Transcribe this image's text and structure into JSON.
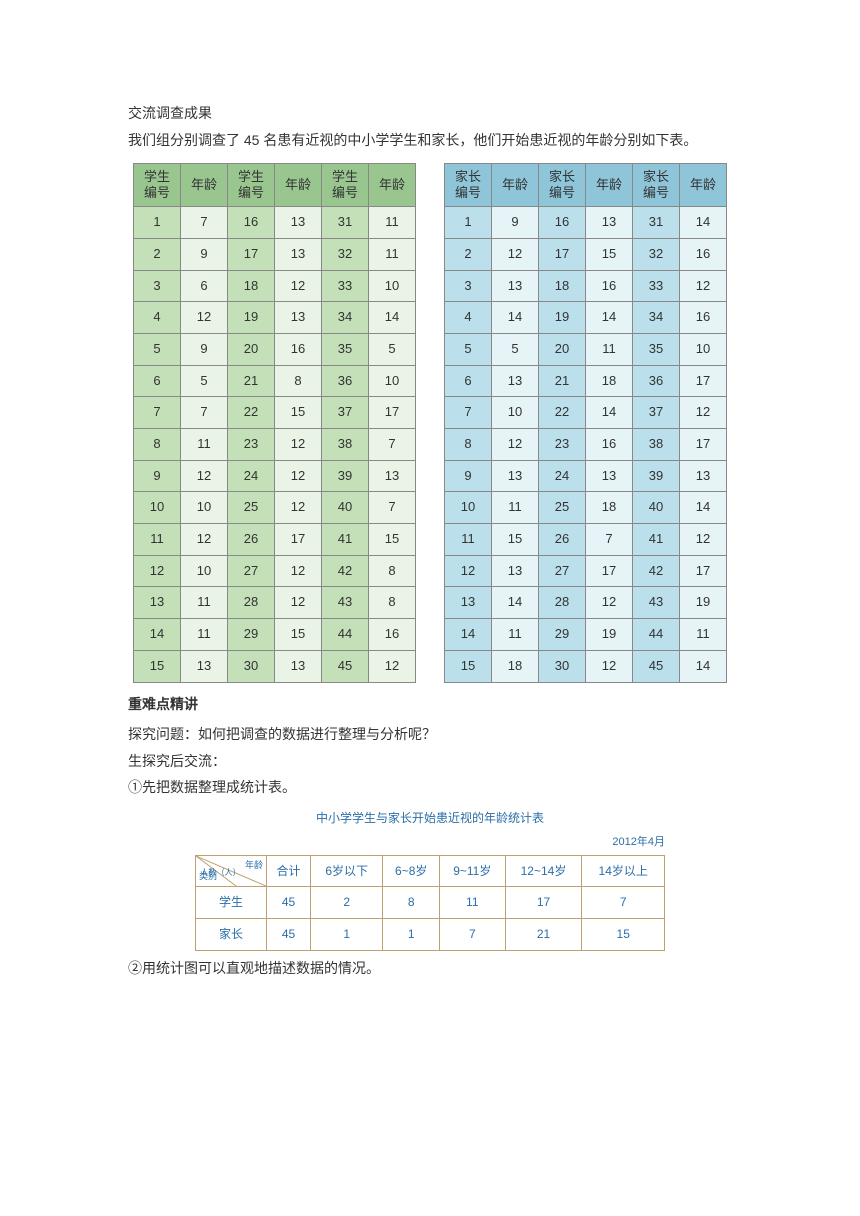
{
  "intro": {
    "p1": "交流调查成果",
    "p2": "我们组分别调查了 45 名患有近视的中小学学生和家长，他们开始患近视的年龄分别如下表。"
  },
  "colors": {
    "green_header": "#99c68f",
    "green_id": "#c3e0b8",
    "green_val": "#eaf4e6",
    "blue_header": "#8fc5d8",
    "blue_id": "#bbe0ec",
    "blue_val": "#e6f3f7",
    "border": "#888888",
    "summary_border": "#bfa070",
    "summary_text": "#2b6ea8"
  },
  "headers": {
    "student_id": "学生编号",
    "parent_id": "家长编号",
    "age": "年龄"
  },
  "students": [
    [
      1,
      7
    ],
    [
      2,
      9
    ],
    [
      3,
      6
    ],
    [
      4,
      12
    ],
    [
      5,
      9
    ],
    [
      6,
      5
    ],
    [
      7,
      7
    ],
    [
      8,
      11
    ],
    [
      9,
      12
    ],
    [
      10,
      10
    ],
    [
      11,
      12
    ],
    [
      12,
      10
    ],
    [
      13,
      11
    ],
    [
      14,
      11
    ],
    [
      15,
      13
    ],
    [
      16,
      13
    ],
    [
      17,
      13
    ],
    [
      18,
      12
    ],
    [
      19,
      13
    ],
    [
      20,
      16
    ],
    [
      21,
      8
    ],
    [
      22,
      15
    ],
    [
      23,
      12
    ],
    [
      24,
      12
    ],
    [
      25,
      12
    ],
    [
      26,
      17
    ],
    [
      27,
      12
    ],
    [
      28,
      12
    ],
    [
      29,
      15
    ],
    [
      30,
      13
    ],
    [
      31,
      11
    ],
    [
      32,
      11
    ],
    [
      33,
      10
    ],
    [
      34,
      14
    ],
    [
      35,
      5
    ],
    [
      36,
      10
    ],
    [
      37,
      17
    ],
    [
      38,
      7
    ],
    [
      39,
      13
    ],
    [
      40,
      7
    ],
    [
      41,
      15
    ],
    [
      42,
      8
    ],
    [
      43,
      8
    ],
    [
      44,
      16
    ],
    [
      45,
      12
    ]
  ],
  "parents": [
    [
      1,
      9
    ],
    [
      2,
      12
    ],
    [
      3,
      13
    ],
    [
      4,
      14
    ],
    [
      5,
      5
    ],
    [
      6,
      13
    ],
    [
      7,
      10
    ],
    [
      8,
      12
    ],
    [
      9,
      13
    ],
    [
      10,
      11
    ],
    [
      11,
      15
    ],
    [
      12,
      13
    ],
    [
      13,
      14
    ],
    [
      14,
      11
    ],
    [
      15,
      18
    ],
    [
      16,
      13
    ],
    [
      17,
      15
    ],
    [
      18,
      16
    ],
    [
      19,
      14
    ],
    [
      20,
      11
    ],
    [
      21,
      18
    ],
    [
      22,
      14
    ],
    [
      23,
      16
    ],
    [
      24,
      13
    ],
    [
      25,
      18
    ],
    [
      26,
      7
    ],
    [
      27,
      17
    ],
    [
      28,
      12
    ],
    [
      29,
      19
    ],
    [
      30,
      12
    ],
    [
      31,
      14
    ],
    [
      32,
      16
    ],
    [
      33,
      12
    ],
    [
      34,
      16
    ],
    [
      35,
      10
    ],
    [
      36,
      17
    ],
    [
      37,
      12
    ],
    [
      38,
      17
    ],
    [
      39,
      13
    ],
    [
      40,
      14
    ],
    [
      41,
      12
    ],
    [
      42,
      17
    ],
    [
      43,
      19
    ],
    [
      44,
      11
    ],
    [
      45,
      14
    ]
  ],
  "mid": {
    "heading": "重难点精讲",
    "q": "探究问题：如何把调查的数据进行整理与分析呢？",
    "a": "生探究后交流：",
    "step1": "①先把数据整理成统计表。",
    "step2": "②用统计图可以直观地描述数据的情况。"
  },
  "summary": {
    "title": "中小学学生与家长开始患近视的年龄统计表",
    "date": "2012年4月",
    "diag_top": "年龄",
    "diag_left": "人数（人）",
    "diag_bot": "类别",
    "columns": [
      "合计",
      "6岁以下",
      "6~8岁",
      "9~11岁",
      "12~14岁",
      "14岁以上"
    ],
    "rows": [
      {
        "label": "学生",
        "cells": [
          45,
          2,
          8,
          11,
          17,
          7
        ]
      },
      {
        "label": "家长",
        "cells": [
          45,
          1,
          1,
          7,
          21,
          15
        ]
      }
    ]
  }
}
